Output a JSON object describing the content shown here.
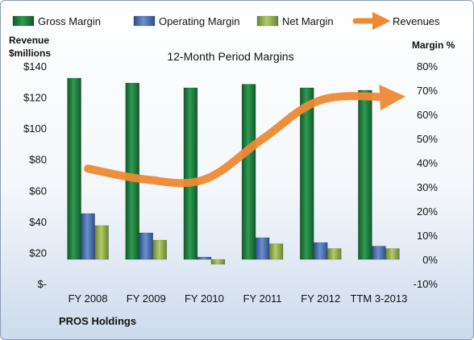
{
  "chart_data": {
    "type": "bar",
    "title": "12-Month Period Margins",
    "company_label": "PROS Holdings",
    "left_axis": {
      "label_lines": [
        "Revenue",
        "$millions"
      ],
      "range": [
        0,
        140
      ],
      "ticks": [
        {
          "value": 0,
          "label": "$-"
        },
        {
          "value": 20,
          "label": "$20"
        },
        {
          "value": 40,
          "label": "$40"
        },
        {
          "value": 60,
          "label": "$60"
        },
        {
          "value": 80,
          "label": "$80"
        },
        {
          "value": 100,
          "label": "$100"
        },
        {
          "value": 120,
          "label": "$120"
        },
        {
          "value": 140,
          "label": "$140"
        }
      ]
    },
    "right_axis": {
      "label": "Margin %",
      "range": [
        -10,
        80
      ],
      "ticks": [
        {
          "value": -10,
          "label": "-10%"
        },
        {
          "value": 0,
          "label": "0%"
        },
        {
          "value": 10,
          "label": "10%"
        },
        {
          "value": 20,
          "label": "20%"
        },
        {
          "value": 30,
          "label": "30%"
        },
        {
          "value": 40,
          "label": "40%"
        },
        {
          "value": 50,
          "label": "50%"
        },
        {
          "value": 60,
          "label": "60%"
        },
        {
          "value": 70,
          "label": "70%"
        },
        {
          "value": 80,
          "label": "80%"
        }
      ]
    },
    "categories": [
      "FY 2008",
      "FY 2009",
      "FY 2010",
      "FY 2011",
      "FY 2012",
      "TTM 3-2013"
    ],
    "series": [
      {
        "name": "Gross Margin",
        "axis": "right",
        "kind": "bar",
        "color": "#1f7a3c",
        "values": [
          75,
          73,
          71,
          72.5,
          71,
          70
        ]
      },
      {
        "name": "Operating Margin",
        "axis": "right",
        "kind": "bar",
        "color": "#4a6fb0",
        "values": [
          19,
          11,
          1,
          9,
          7,
          5.5
        ]
      },
      {
        "name": "Net Margin",
        "axis": "right",
        "kind": "bar",
        "color": "#8faa45",
        "values": [
          14,
          8,
          -2,
          6.5,
          4.5,
          4.5
        ]
      },
      {
        "name": "Revenues",
        "axis": "left",
        "kind": "line",
        "color": "#ee8a34",
        "values": [
          74,
          67,
          67,
          93,
          118,
          120
        ]
      }
    ],
    "legend_position": "top",
    "grid": false
  }
}
